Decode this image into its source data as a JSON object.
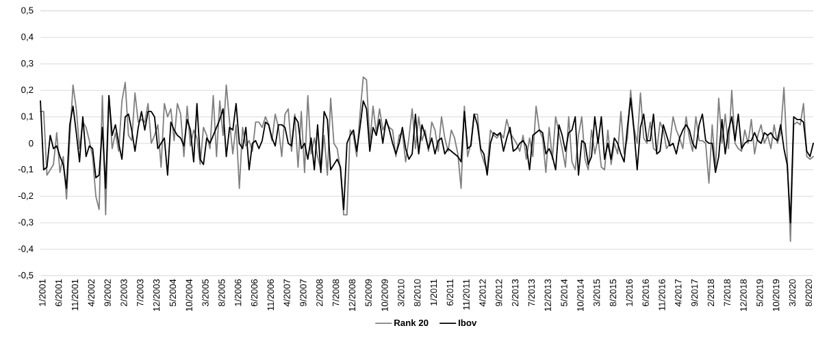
{
  "chart_data": {
    "type": "line",
    "grid": "y",
    "legend": "bottom",
    "marker": "none",
    "line_style": "solid",
    "x": [
      "2001-01",
      "2001-02",
      "2001-03",
      "2001-04",
      "2001-05",
      "2001-06",
      "2001-07",
      "2001-08",
      "2001-09",
      "2001-10",
      "2001-11",
      "2001-12",
      "2002-01",
      "2002-02",
      "2002-03",
      "2002-04",
      "2002-05",
      "2002-06",
      "2002-07",
      "2002-08",
      "2002-09",
      "2002-10",
      "2002-11",
      "2002-12",
      "2003-01",
      "2003-02",
      "2003-03",
      "2003-04",
      "2003-05",
      "2003-06",
      "2003-07",
      "2003-08",
      "2003-09",
      "2003-10",
      "2003-11",
      "2003-12",
      "2004-01",
      "2004-02",
      "2004-03",
      "2004-04",
      "2004-05",
      "2004-06",
      "2004-07",
      "2004-08",
      "2004-09",
      "2004-10",
      "2004-11",
      "2004-12",
      "2005-01",
      "2005-02",
      "2005-03",
      "2005-04",
      "2005-05",
      "2005-06",
      "2005-07",
      "2005-08",
      "2005-09",
      "2005-10",
      "2005-11",
      "2005-12",
      "2006-01",
      "2006-02",
      "2006-03",
      "2006-04",
      "2006-05",
      "2006-06",
      "2006-07",
      "2006-08",
      "2006-09",
      "2006-10",
      "2006-11",
      "2006-12",
      "2007-01",
      "2007-02",
      "2007-03",
      "2007-04",
      "2007-05",
      "2007-06",
      "2007-07",
      "2007-08",
      "2007-09",
      "2007-10",
      "2007-11",
      "2007-12",
      "2008-01",
      "2008-02",
      "2008-03",
      "2008-04",
      "2008-05",
      "2008-06",
      "2008-07",
      "2008-08",
      "2008-09",
      "2008-10",
      "2008-11",
      "2008-12",
      "2009-01",
      "2009-02",
      "2009-03",
      "2009-04",
      "2009-05",
      "2009-06",
      "2009-07",
      "2009-08",
      "2009-09",
      "2009-10",
      "2009-11",
      "2009-12",
      "2010-01",
      "2010-02",
      "2010-03",
      "2010-04",
      "2010-05",
      "2010-06",
      "2010-07",
      "2010-08",
      "2010-09",
      "2010-10",
      "2010-11",
      "2010-12",
      "2011-01",
      "2011-02",
      "2011-03",
      "2011-04",
      "2011-05",
      "2011-06",
      "2011-07",
      "2011-08",
      "2011-09",
      "2011-10",
      "2011-11",
      "2011-12",
      "2012-01",
      "2012-02",
      "2012-03",
      "2012-04",
      "2012-05",
      "2012-06",
      "2012-07",
      "2012-08",
      "2012-09",
      "2012-10",
      "2012-11",
      "2012-12",
      "2013-01",
      "2013-02",
      "2013-03",
      "2013-04",
      "2013-05",
      "2013-06",
      "2013-07",
      "2013-08",
      "2013-09",
      "2013-10",
      "2013-11",
      "2013-12",
      "2014-01",
      "2014-02",
      "2014-03",
      "2014-04",
      "2014-05",
      "2014-06",
      "2014-07",
      "2014-08",
      "2014-09",
      "2014-10",
      "2014-11",
      "2014-12",
      "2015-01",
      "2015-02",
      "2015-03",
      "2015-04",
      "2015-05",
      "2015-06",
      "2015-07",
      "2015-08",
      "2015-09",
      "2015-10",
      "2015-11",
      "2015-12",
      "2016-01",
      "2016-02",
      "2016-03",
      "2016-04",
      "2016-05",
      "2016-06",
      "2016-07",
      "2016-08",
      "2016-09",
      "2016-10",
      "2016-11",
      "2016-12",
      "2017-01",
      "2017-02",
      "2017-03",
      "2017-04",
      "2017-05",
      "2017-06",
      "2017-07",
      "2017-08",
      "2017-09",
      "2017-10",
      "2017-11",
      "2017-12",
      "2018-01",
      "2018-02",
      "2018-03",
      "2018-04",
      "2018-05",
      "2018-06",
      "2018-07",
      "2018-08",
      "2018-09",
      "2018-10",
      "2018-11",
      "2018-12",
      "2019-01",
      "2019-02",
      "2019-03",
      "2019-04",
      "2019-05",
      "2019-06",
      "2019-07",
      "2019-08",
      "2019-09",
      "2019-10",
      "2019-11",
      "2019-12",
      "2020-01",
      "2020-02",
      "2020-03",
      "2020-04",
      "2020-05",
      "2020-06",
      "2020-07",
      "2020-08",
      "2020-09",
      "2020-10"
    ],
    "xlim": [
      "2001-01",
      "2020-10"
    ],
    "xticks": [
      {
        "value": "2001-01",
        "label": "1/2001"
      },
      {
        "value": "2001-06",
        "label": "6/2001"
      },
      {
        "value": "2001-11",
        "label": "11/2001"
      },
      {
        "value": "2002-04",
        "label": "4/2002"
      },
      {
        "value": "2002-09",
        "label": "9/2002"
      },
      {
        "value": "2003-02",
        "label": "2/2003"
      },
      {
        "value": "2003-07",
        "label": "7/2003"
      },
      {
        "value": "2003-12",
        "label": "12/2003"
      },
      {
        "value": "2004-05",
        "label": "5/2004"
      },
      {
        "value": "2004-10",
        "label": "10/2004"
      },
      {
        "value": "2005-03",
        "label": "3/2005"
      },
      {
        "value": "2005-08",
        "label": "8/2005"
      },
      {
        "value": "2006-01",
        "label": "1/2006"
      },
      {
        "value": "2006-06",
        "label": "6/2006"
      },
      {
        "value": "2006-11",
        "label": "11/2006"
      },
      {
        "value": "2007-04",
        "label": "4/2007"
      },
      {
        "value": "2007-09",
        "label": "9/2007"
      },
      {
        "value": "2008-02",
        "label": "2/2008"
      },
      {
        "value": "2008-07",
        "label": "7/2008"
      },
      {
        "value": "2008-12",
        "label": "12/2008"
      },
      {
        "value": "2009-05",
        "label": "5/2009"
      },
      {
        "value": "2009-10",
        "label": "10/2009"
      },
      {
        "value": "2010-03",
        "label": "3/2010"
      },
      {
        "value": "2010-08",
        "label": "8/2010"
      },
      {
        "value": "2011-01",
        "label": "1/2011"
      },
      {
        "value": "2011-06",
        "label": "6/2011"
      },
      {
        "value": "2011-11",
        "label": "11/2011"
      },
      {
        "value": "2012-04",
        "label": "4/2012"
      },
      {
        "value": "2012-09",
        "label": "9/2012"
      },
      {
        "value": "2013-02",
        "label": "2/2013"
      },
      {
        "value": "2013-07",
        "label": "7/2013"
      },
      {
        "value": "2013-12",
        "label": "12/2013"
      },
      {
        "value": "2014-05",
        "label": "5/2014"
      },
      {
        "value": "2014-10",
        "label": "10/2014"
      },
      {
        "value": "2015-03",
        "label": "3/2015"
      },
      {
        "value": "2015-08",
        "label": "8/2015"
      },
      {
        "value": "2016-01",
        "label": "1/2016"
      },
      {
        "value": "2016-06",
        "label": "6/2016"
      },
      {
        "value": "2016-11",
        "label": "11/2016"
      },
      {
        "value": "2017-04",
        "label": "4/2017"
      },
      {
        "value": "2017-09",
        "label": "9/2017"
      },
      {
        "value": "2018-02",
        "label": "2/2018"
      },
      {
        "value": "2018-07",
        "label": "7/2018"
      },
      {
        "value": "2018-12",
        "label": "12/2018"
      },
      {
        "value": "2019-05",
        "label": "5/2019"
      },
      {
        "value": "2019-10",
        "label": "10/2019"
      },
      {
        "value": "2020-03",
        "label": "3/2020"
      },
      {
        "value": "2020-08",
        "label": "8/2020"
      }
    ],
    "ylim": [
      -0.5,
      0.5
    ],
    "yticks": [
      {
        "value": -0.5,
        "label": "-0,5"
      },
      {
        "value": -0.4,
        "label": "-0,4"
      },
      {
        "value": -0.3,
        "label": "-0,3"
      },
      {
        "value": -0.2,
        "label": "-0,2"
      },
      {
        "value": -0.1,
        "label": "-0,1"
      },
      {
        "value": 0,
        "label": "0"
      },
      {
        "value": 0.1,
        "label": "0,1"
      },
      {
        "value": 0.2,
        "label": "0,2"
      },
      {
        "value": 0.3,
        "label": "0,3"
      },
      {
        "value": 0.4,
        "label": "0,4"
      },
      {
        "value": 0.5,
        "label": "0,5"
      }
    ],
    "series": [
      {
        "name": "Rank 20",
        "color": "#808080",
        "values": [
          0.12,
          0.12,
          -0.12,
          -0.1,
          -0.08,
          0.04,
          -0.11,
          -0.05,
          -0.21,
          0.02,
          0.22,
          0.13,
          -0.02,
          0.08,
          0.06,
          0.01,
          -0.05,
          -0.2,
          -0.25,
          0.18,
          -0.27,
          0.18,
          -0.02,
          0.04,
          -0.03,
          0.16,
          0.23,
          0.03,
          0.01,
          0.19,
          0.08,
          0.09,
          0.08,
          0.15,
          0.0,
          0.03,
          0.07,
          -0.09,
          0.15,
          0.1,
          0.13,
          0.01,
          0.15,
          0.11,
          -0.05,
          0.14,
          -0.01,
          0.05,
          0.02,
          -0.08,
          0.06,
          0.03,
          -0.02,
          0.18,
          -0.05,
          0.16,
          0.03,
          0.22,
          0.08,
          -0.04,
          0.07,
          -0.17,
          0.06,
          -0.01,
          0.01,
          -0.03,
          0.08,
          0.08,
          0.06,
          0.1,
          0.07,
          0.01,
          0.11,
          0.06,
          -0.05,
          0.11,
          0.13,
          -0.03,
          0.11,
          -0.09,
          0.12,
          -0.11,
          0.18,
          -0.04,
          0.02,
          -0.05,
          -0.1,
          0.03,
          -0.12,
          0.17,
          0.0,
          -0.02,
          -0.1,
          -0.27,
          -0.27,
          0.05,
          0.03,
          -0.05,
          0.11,
          0.25,
          0.24,
          0.0,
          0.14,
          0.04,
          0.13,
          0.05,
          0.08,
          0.06,
          0.05,
          -0.05,
          0.03,
          0.04,
          -0.07,
          0.02,
          0.13,
          -0.02,
          0.1,
          0.01,
          0.05,
          -0.03,
          0.08,
          0.05,
          -0.03,
          0.1,
          0.02,
          -0.03,
          0.05,
          0.02,
          -0.04,
          -0.17,
          0.14,
          -0.05,
          0.0,
          0.11,
          0.11,
          -0.03,
          -0.07,
          -0.1,
          0.05,
          0.03,
          0.02,
          0.04,
          0.02,
          0.09,
          0.04,
          0.02,
          0.0,
          -0.03,
          0.03,
          -0.06,
          0.02,
          -0.05,
          0.14,
          0.05,
          0.02,
          -0.11,
          0.06,
          -0.06,
          0.1,
          0.04,
          -0.02,
          -0.09,
          0.1,
          -0.07,
          -0.1,
          0.03,
          0.1,
          -0.06,
          -0.1,
          0.05,
          -0.04,
          0.02,
          -0.09,
          -0.1,
          0.05,
          -0.08,
          0.0,
          -0.04,
          0.12,
          -0.04,
          0.02,
          0.2,
          0.06,
          0.0,
          0.19,
          0.02,
          0.0,
          0.08,
          -0.02,
          -0.03,
          0.08,
          0.05,
          -0.02,
          0.0,
          0.1,
          0.05,
          0.02,
          -0.02,
          0.1,
          0.02,
          -0.03,
          0.1,
          0.01,
          0.01,
          0.0,
          -0.15,
          0.07,
          -0.1,
          0.17,
          0.0,
          0.11,
          -0.02,
          0.2,
          0.0,
          -0.02,
          -0.03,
          0.05,
          0.0,
          0.09,
          -0.04,
          0.03,
          0.07,
          0.0,
          0.03,
          -0.02,
          0.07,
          0.0,
          0.04,
          0.21,
          -0.05,
          -0.37,
          0.07,
          0.08,
          0.07,
          0.15,
          -0.05,
          -0.06,
          -0.05
        ]
      },
      {
        "name": "Ibov",
        "color": "#000000",
        "values": [
          0.16,
          -0.1,
          -0.09,
          0.03,
          -0.02,
          -0.01,
          -0.05,
          -0.08,
          -0.17,
          0.07,
          0.14,
          0.04,
          -0.07,
          0.1,
          -0.05,
          -0.01,
          -0.02,
          -0.13,
          -0.12,
          0.06,
          -0.17,
          0.18,
          0.03,
          0.07,
          0.0,
          -0.06,
          0.1,
          0.11,
          0.05,
          -0.03,
          0.06,
          0.12,
          0.05,
          0.12,
          0.12,
          0.1,
          -0.02,
          0.0,
          0.02,
          -0.12,
          0.08,
          0.05,
          0.03,
          0.02,
          -0.01,
          0.09,
          0.05,
          -0.07,
          0.15,
          -0.06,
          -0.08,
          0.02,
          0.0,
          0.03,
          0.06,
          0.09,
          0.13,
          -0.05,
          0.06,
          0.05,
          0.15,
          0.0,
          -0.02,
          0.06,
          -0.1,
          0.0,
          0.01,
          -0.02,
          0.01,
          0.08,
          0.07,
          0.02,
          -0.01,
          0.07,
          0.07,
          0.06,
          0.0,
          -0.01,
          0.1,
          0.08,
          -0.02,
          0.0,
          -0.06,
          0.02,
          -0.1,
          0.07,
          -0.11,
          0.12,
          0.09,
          -0.1,
          -0.08,
          -0.06,
          -0.09,
          -0.25,
          0.0,
          0.03,
          0.05,
          -0.03,
          0.06,
          0.16,
          0.13,
          -0.03,
          0.06,
          0.03,
          0.09,
          0.0,
          0.09,
          0.05,
          0.0,
          -0.04,
          0.0,
          0.06,
          -0.02,
          -0.06,
          -0.04,
          0.11,
          -0.04,
          0.07,
          0.03,
          -0.02,
          0.02,
          -0.04,
          0.01,
          0.02,
          -0.04,
          -0.02,
          -0.03,
          -0.04,
          -0.05,
          -0.07,
          0.12,
          -0.02,
          -0.01,
          0.11,
          0.07,
          -0.02,
          -0.04,
          -0.12,
          0.0,
          0.04,
          0.03,
          0.04,
          -0.03,
          0.02,
          0.06,
          -0.03,
          -0.02,
          0.0,
          0.01,
          -0.01,
          -0.1,
          0.03,
          0.04,
          0.05,
          0.04,
          -0.04,
          -0.02,
          -0.05,
          -0.1,
          0.07,
          0.03,
          -0.03,
          0.04,
          0.05,
          0.1,
          -0.12,
          0.01,
          0.0,
          -0.08,
          -0.05,
          0.1,
          0.0,
          0.1,
          -0.06,
          0.0,
          -0.06,
          0.02,
          0.0,
          -0.04,
          -0.07,
          0.06,
          0.17,
          0.05,
          -0.1,
          0.06,
          0.11,
          0.01,
          0.01,
          0.11,
          -0.04,
          -0.03,
          0.07,
          0.03,
          -0.01,
          0.0,
          -0.04,
          0.02,
          0.05,
          0.07,
          0.05,
          0.0,
          -0.02,
          0.07,
          0.11,
          0.01,
          0.0,
          0.0,
          -0.11,
          -0.05,
          0.09,
          -0.04,
          0.05,
          0.1,
          0.01,
          0.11,
          -0.02,
          0.0,
          0.01,
          0.01,
          0.04,
          0.01,
          0.0,
          0.04,
          0.03,
          0.04,
          0.02,
          0.01,
          0.07,
          -0.02,
          -0.08,
          -0.3,
          0.1,
          0.09,
          0.09,
          0.08,
          -0.03,
          -0.05,
          0.0
        ]
      }
    ]
  }
}
